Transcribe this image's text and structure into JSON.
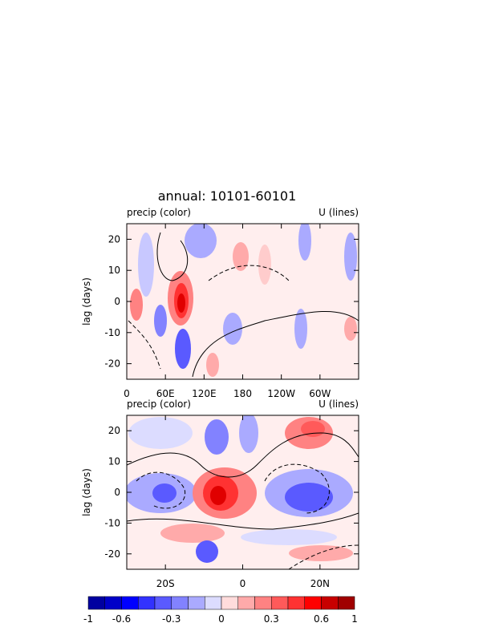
{
  "title": "annual: 10101-60101",
  "chart_data": [
    {
      "type": "contour",
      "left_label": "precip (color)",
      "right_label": "U (lines)",
      "ylabel": "lag (days)",
      "xlim": [
        0,
        360
      ],
      "xticks": [
        0,
        {
          "value": 60,
          "label": "60E"
        },
        {
          "value": 120,
          "label": "120E"
        },
        180,
        {
          "value": 240,
          "label": "120W"
        },
        {
          "value": 300,
          "label": "60W"
        }
      ],
      "ylim": [
        -25,
        25
      ],
      "yticks": [
        -20,
        -10,
        0,
        10,
        20
      ]
    },
    {
      "type": "contour",
      "left_label": "precip (color)",
      "right_label": "U (lines)",
      "ylabel": "lag (days)",
      "xlim": [
        -30,
        30
      ],
      "xticks": [
        {
          "value": -20,
          "label": "20S"
        },
        0,
        {
          "value": 20,
          "label": "20N"
        }
      ],
      "ylim": [
        -25,
        25
      ],
      "yticks": [
        -20,
        -10,
        0,
        10,
        20
      ]
    }
  ],
  "colorbar": {
    "levels": [
      -1,
      -0.8,
      -0.6,
      -0.5,
      -0.4,
      -0.3,
      -0.2,
      -0.1,
      0,
      0.1,
      0.2,
      0.3,
      0.4,
      0.5,
      0.6,
      0.8,
      1
    ],
    "colors": [
      "#0000a0",
      "#0000c8",
      "#0000ff",
      "#3232ff",
      "#5a5aff",
      "#8282ff",
      "#aaaaff",
      "#dcdcff",
      "#ffdcdc",
      "#ffaaaa",
      "#ff8282",
      "#ff5a5a",
      "#ff3232",
      "#ff0000",
      "#c80000",
      "#a00000"
    ],
    "ticks": [
      -1,
      -0.6,
      -0.3,
      0,
      0.3,
      0.6,
      1
    ]
  }
}
